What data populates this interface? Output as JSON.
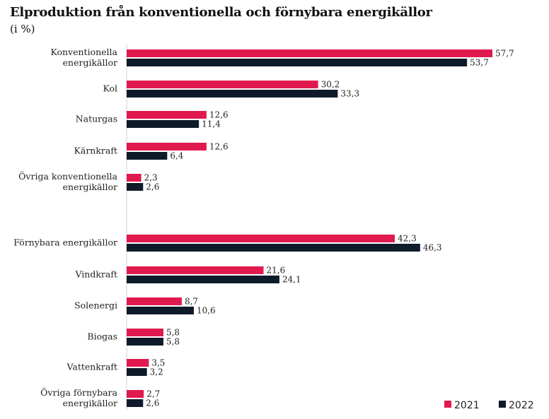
{
  "chart_data": {
    "type": "bar",
    "orientation": "horizontal",
    "title": "Elproduktion från konventionella och förnybara energikällor",
    "subtitle": "(i %)",
    "categories": [
      [
        "Konventionella",
        "energikällor"
      ],
      [
        "Kol"
      ],
      [
        "Naturgas"
      ],
      [
        "Kärnkraft"
      ],
      [
        "Övriga konventionella",
        "energikällor"
      ],
      [
        "Förnybara energikällor"
      ],
      [
        "Vindkraft"
      ],
      [
        "Solenergi"
      ],
      [
        "Biogas"
      ],
      [
        "Vattenkraft"
      ],
      [
        "Övriga förnybara",
        "energikällor"
      ]
    ],
    "series": [
      {
        "name": "2021",
        "color": "#e01a4f",
        "values": [
          57.7,
          30.2,
          12.6,
          12.6,
          2.3,
          42.3,
          21.6,
          8.7,
          5.8,
          3.5,
          2.7
        ],
        "labels": [
          "57,7",
          "30,2",
          "12,6",
          "12,6",
          "2,3",
          "42,3",
          "21,6",
          "8,7",
          "5,8",
          "3,5",
          "2,7"
        ]
      },
      {
        "name": "2022",
        "color": "#0f1a2b",
        "values": [
          53.7,
          33.3,
          11.4,
          6.4,
          2.6,
          46.3,
          24.1,
          10.6,
          5.8,
          3.2,
          2.6
        ],
        "labels": [
          "53,7",
          "33,3",
          "11,4",
          "6,4",
          "2,6",
          "46,3",
          "24,1",
          "10,6",
          "5,8",
          "3,2",
          "2,6"
        ]
      }
    ],
    "xlim": [
      0,
      57.7
    ],
    "grid": false,
    "legend_position": "bottom-right"
  }
}
